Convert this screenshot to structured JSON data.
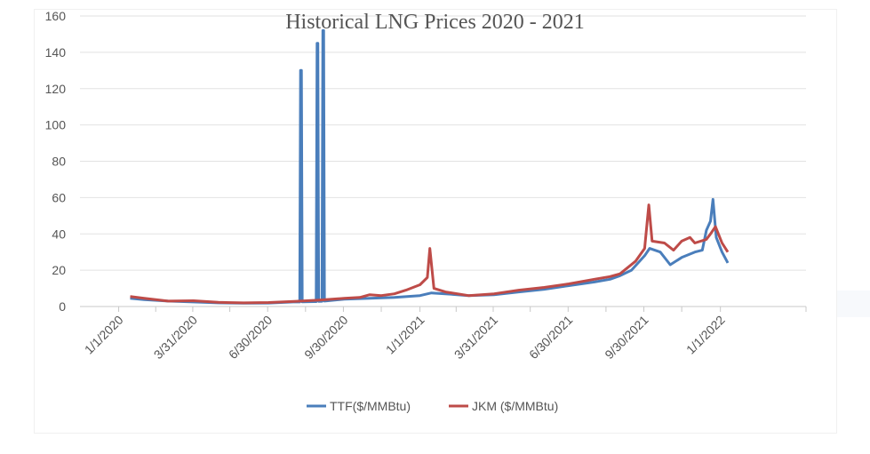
{
  "chart_data": {
    "type": "line",
    "title": "Historical LNG Prices 2020 - 2021",
    "xlabel": "",
    "ylabel": "",
    "ylim": [
      0,
      160
    ],
    "yticks": [
      0,
      20,
      40,
      60,
      80,
      100,
      120,
      140,
      160
    ],
    "xlim": [
      "2019-11-15",
      "2022-04-15"
    ],
    "xticks": [
      "1/1/2020",
      "3/31/2020",
      "6/30/2020",
      "9/30/2020",
      "1/1/2021",
      "3/31/2021",
      "6/30/2021",
      "9/30/2021",
      "1/1/2022"
    ],
    "xtick_dates": [
      "2020-01-01",
      "2020-03-31",
      "2020-06-30",
      "2020-09-30",
      "2021-01-01",
      "2021-03-31",
      "2021-06-30",
      "2021-09-30",
      "2022-01-01"
    ],
    "grid": true,
    "legend": "bottom",
    "series": [
      {
        "name": "TTF($/MMBtu)",
        "color": "#4a7ebb",
        "points": [
          [
            "2020-01-15",
            4.5
          ],
          [
            "2020-02-01",
            3.8
          ],
          [
            "2020-03-01",
            3.0
          ],
          [
            "2020-04-01",
            2.5
          ],
          [
            "2020-05-01",
            2.0
          ],
          [
            "2020-06-01",
            1.8
          ],
          [
            "2020-07-01",
            1.9
          ],
          [
            "2020-07-31",
            2.5
          ],
          [
            "2020-08-08",
            2.5
          ],
          [
            "2020-08-09",
            130
          ],
          [
            "2020-08-10",
            130
          ],
          [
            "2020-08-11",
            2.6
          ],
          [
            "2020-08-25",
            2.7
          ],
          [
            "2020-08-28",
            2.7
          ],
          [
            "2020-08-29",
            145
          ],
          [
            "2020-08-30",
            145
          ],
          [
            "2020-08-31",
            2.8
          ],
          [
            "2020-09-04",
            2.9
          ],
          [
            "2020-09-05",
            152
          ],
          [
            "2020-09-06",
            152
          ],
          [
            "2020-09-07",
            3.0
          ],
          [
            "2020-10-01",
            4.0
          ],
          [
            "2020-11-01",
            4.5
          ],
          [
            "2020-12-01",
            5.0
          ],
          [
            "2021-01-01",
            6.0
          ],
          [
            "2021-01-15",
            7.5
          ],
          [
            "2021-02-01",
            7.0
          ],
          [
            "2021-03-01",
            6.0
          ],
          [
            "2021-04-01",
            6.5
          ],
          [
            "2021-05-01",
            8.0
          ],
          [
            "2021-06-01",
            9.5
          ],
          [
            "2021-07-01",
            11.5
          ],
          [
            "2021-08-01",
            13.5
          ],
          [
            "2021-08-20",
            15.0
          ],
          [
            "2021-09-01",
            17.0
          ],
          [
            "2021-09-15",
            20.0
          ],
          [
            "2021-10-01",
            28.0
          ],
          [
            "2021-10-07",
            32.0
          ],
          [
            "2021-10-20",
            30.0
          ],
          [
            "2021-11-01",
            23.0
          ],
          [
            "2021-11-15",
            27.0
          ],
          [
            "2021-12-01",
            30.0
          ],
          [
            "2021-12-10",
            31.0
          ],
          [
            "2021-12-15",
            42.0
          ],
          [
            "2021-12-20",
            47.0
          ],
          [
            "2021-12-23",
            59.0
          ],
          [
            "2021-12-27",
            38.0
          ],
          [
            "2022-01-03",
            30.0
          ],
          [
            "2022-01-10",
            24.0
          ]
        ]
      },
      {
        "name": "JKM ($/MMBtu)",
        "color": "#be4b48",
        "points": [
          [
            "2020-01-15",
            5.5
          ],
          [
            "2020-02-01",
            4.5
          ],
          [
            "2020-03-01",
            3.0
          ],
          [
            "2020-04-01",
            3.2
          ],
          [
            "2020-05-01",
            2.3
          ],
          [
            "2020-06-01",
            2.0
          ],
          [
            "2020-07-01",
            2.2
          ],
          [
            "2020-08-01",
            2.8
          ],
          [
            "2020-09-01",
            3.5
          ],
          [
            "2020-10-01",
            4.5
          ],
          [
            "2020-10-20",
            5.0
          ],
          [
            "2020-11-01",
            6.5
          ],
          [
            "2020-11-15",
            6.0
          ],
          [
            "2020-12-01",
            7.0
          ],
          [
            "2020-12-15",
            9.0
          ],
          [
            "2021-01-01",
            12.0
          ],
          [
            "2021-01-10",
            16.0
          ],
          [
            "2021-01-13",
            32.0
          ],
          [
            "2021-01-18",
            10.0
          ],
          [
            "2021-02-01",
            8.0
          ],
          [
            "2021-03-01",
            6.0
          ],
          [
            "2021-04-01",
            7.0
          ],
          [
            "2021-05-01",
            9.0
          ],
          [
            "2021-06-01",
            10.5
          ],
          [
            "2021-07-01",
            12.5
          ],
          [
            "2021-08-01",
            15.0
          ],
          [
            "2021-08-20",
            16.5
          ],
          [
            "2021-09-01",
            18.0
          ],
          [
            "2021-09-20",
            25.0
          ],
          [
            "2021-10-01",
            32.0
          ],
          [
            "2021-10-06",
            56.0
          ],
          [
            "2021-10-10",
            36.0
          ],
          [
            "2021-10-25",
            35.0
          ],
          [
            "2021-11-05",
            31.0
          ],
          [
            "2021-11-15",
            36.0
          ],
          [
            "2021-11-25",
            38.0
          ],
          [
            "2021-12-01",
            35.0
          ],
          [
            "2021-12-15",
            37.0
          ],
          [
            "2021-12-20",
            40.0
          ],
          [
            "2021-12-26",
            44.0
          ],
          [
            "2022-01-03",
            35.0
          ],
          [
            "2022-01-10",
            30.0
          ]
        ]
      }
    ]
  }
}
